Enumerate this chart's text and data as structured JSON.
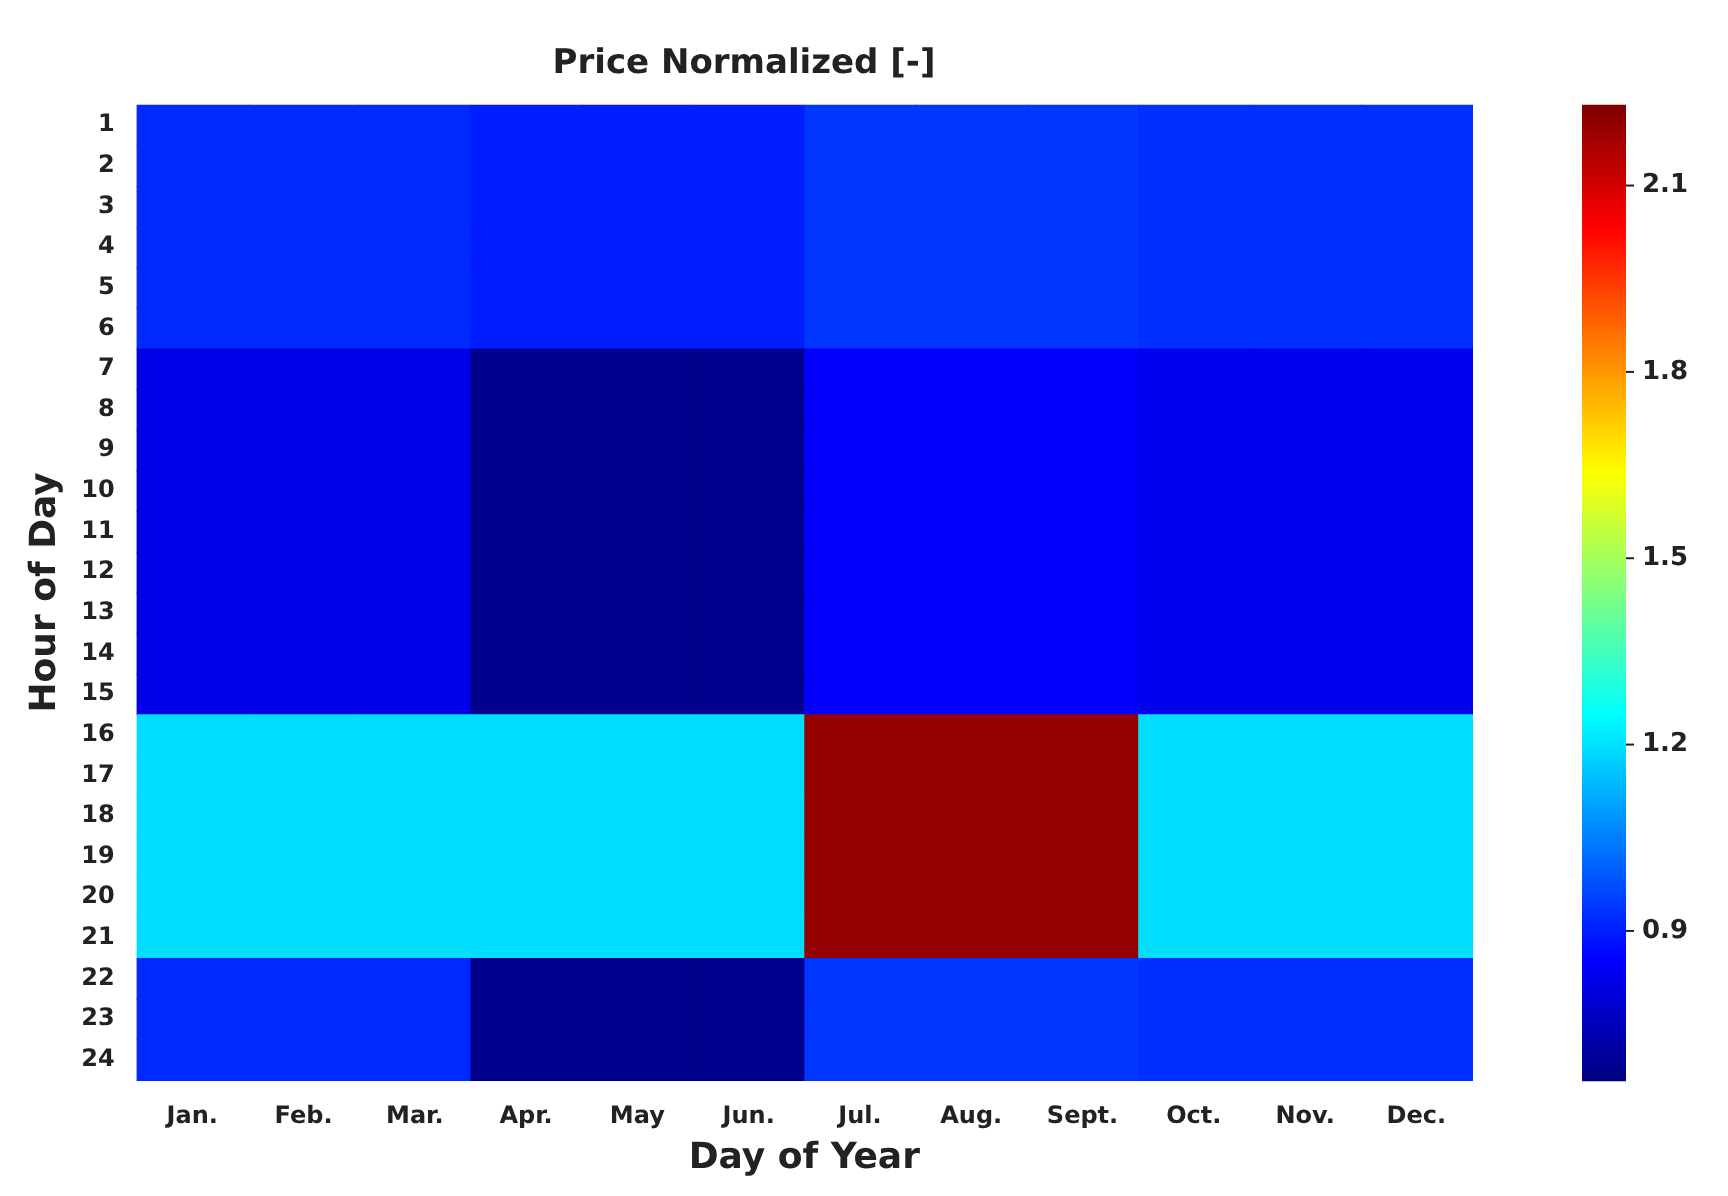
{
  "chart_data": {
    "type": "heatmap",
    "title": "Price Normalized [-]",
    "xlabel": "Day of Year",
    "ylabel": "Hour of Day",
    "categories": [
      "Jan.",
      "Feb.",
      "Mar.",
      "Apr.",
      "May",
      "Jun.",
      "Jul.",
      "Aug.",
      "Sept.",
      "Oct.",
      "Nov.",
      "Dec."
    ],
    "y_categories": [
      "1",
      "2",
      "3",
      "4",
      "5",
      "6",
      "7",
      "8",
      "9",
      "10",
      "11",
      "12",
      "13",
      "14",
      "15",
      "16",
      "17",
      "18",
      "19",
      "20",
      "21",
      "22",
      "23",
      "24"
    ],
    "cells": [
      [
        0.92,
        0.92,
        0.92,
        0.9,
        0.9,
        0.9,
        0.94,
        0.94,
        0.94,
        0.93,
        0.93,
        0.93
      ],
      [
        0.92,
        0.92,
        0.92,
        0.9,
        0.9,
        0.9,
        0.94,
        0.94,
        0.94,
        0.93,
        0.93,
        0.93
      ],
      [
        0.92,
        0.92,
        0.92,
        0.9,
        0.9,
        0.9,
        0.94,
        0.94,
        0.94,
        0.93,
        0.93,
        0.93
      ],
      [
        0.92,
        0.92,
        0.92,
        0.9,
        0.9,
        0.9,
        0.94,
        0.94,
        0.94,
        0.93,
        0.93,
        0.93
      ],
      [
        0.92,
        0.92,
        0.92,
        0.9,
        0.9,
        0.9,
        0.94,
        0.94,
        0.94,
        0.93,
        0.93,
        0.93
      ],
      [
        0.92,
        0.92,
        0.92,
        0.9,
        0.9,
        0.9,
        0.94,
        0.94,
        0.94,
        0.93,
        0.93,
        0.93
      ],
      [
        0.82,
        0.82,
        0.82,
        0.68,
        0.68,
        0.68,
        0.85,
        0.85,
        0.85,
        0.83,
        0.83,
        0.83
      ],
      [
        0.82,
        0.82,
        0.82,
        0.68,
        0.68,
        0.68,
        0.85,
        0.85,
        0.85,
        0.83,
        0.83,
        0.83
      ],
      [
        0.82,
        0.82,
        0.82,
        0.68,
        0.68,
        0.68,
        0.85,
        0.85,
        0.85,
        0.83,
        0.83,
        0.83
      ],
      [
        0.82,
        0.82,
        0.82,
        0.68,
        0.68,
        0.68,
        0.85,
        0.85,
        0.85,
        0.83,
        0.83,
        0.83
      ],
      [
        0.82,
        0.82,
        0.82,
        0.68,
        0.68,
        0.68,
        0.85,
        0.85,
        0.85,
        0.83,
        0.83,
        0.83
      ],
      [
        0.82,
        0.82,
        0.82,
        0.68,
        0.68,
        0.68,
        0.85,
        0.85,
        0.85,
        0.83,
        0.83,
        0.83
      ],
      [
        0.82,
        0.82,
        0.82,
        0.68,
        0.68,
        0.68,
        0.85,
        0.85,
        0.85,
        0.83,
        0.83,
        0.83
      ],
      [
        0.82,
        0.82,
        0.82,
        0.68,
        0.68,
        0.68,
        0.85,
        0.85,
        0.85,
        0.83,
        0.83,
        0.83
      ],
      [
        0.82,
        0.82,
        0.82,
        0.68,
        0.68,
        0.68,
        0.85,
        0.85,
        0.85,
        0.83,
        0.83,
        0.83
      ],
      [
        1.2,
        1.2,
        1.2,
        1.2,
        1.2,
        1.2,
        2.2,
        2.2,
        2.2,
        1.2,
        1.2,
        1.2
      ],
      [
        1.2,
        1.2,
        1.2,
        1.2,
        1.2,
        1.2,
        2.2,
        2.2,
        2.2,
        1.2,
        1.2,
        1.2
      ],
      [
        1.2,
        1.2,
        1.2,
        1.2,
        1.2,
        1.2,
        2.2,
        2.2,
        2.2,
        1.2,
        1.2,
        1.2
      ],
      [
        1.2,
        1.2,
        1.2,
        1.2,
        1.2,
        1.2,
        2.2,
        2.2,
        2.2,
        1.2,
        1.2,
        1.2
      ],
      [
        1.2,
        1.2,
        1.2,
        1.2,
        1.2,
        1.2,
        2.2,
        2.2,
        2.2,
        1.2,
        1.2,
        1.2
      ],
      [
        1.2,
        1.2,
        1.2,
        1.2,
        1.2,
        1.2,
        2.2,
        2.2,
        2.2,
        1.2,
        1.2,
        1.2
      ],
      [
        0.92,
        0.92,
        0.92,
        0.68,
        0.68,
        0.68,
        0.94,
        0.94,
        0.94,
        0.93,
        0.93,
        0.93
      ],
      [
        0.92,
        0.92,
        0.92,
        0.68,
        0.68,
        0.68,
        0.94,
        0.94,
        0.94,
        0.93,
        0.93,
        0.93
      ],
      [
        0.92,
        0.92,
        0.92,
        0.68,
        0.68,
        0.68,
        0.94,
        0.94,
        0.94,
        0.93,
        0.93,
        0.93
      ]
    ],
    "clim": [
      0.66,
      2.23
    ],
    "cticks": [
      0.9,
      1.2,
      1.5,
      1.8,
      2.1
    ]
  }
}
